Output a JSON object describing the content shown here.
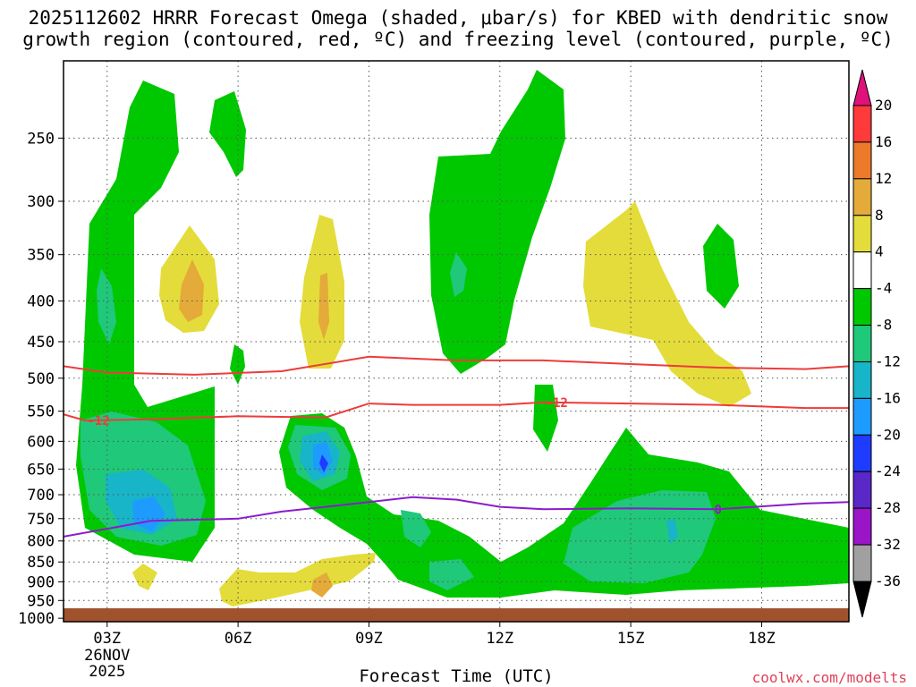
{
  "chart_data": {
    "type": "time-height contour",
    "title_line1": "2025112602 HRRR Forecast Omega (shaded, μbar/s) for KBED with dendritic snow",
    "title_line2": "growth region (contoured, red, ºC) and freezing level (contoured, purple, ºC)",
    "xlabel": "Forecast Time (UTC)",
    "credit": "coolwx.com/modelts",
    "x_ticks": [
      "03Z",
      "06Z",
      "09Z",
      "12Z",
      "15Z",
      "18Z"
    ],
    "x_date_line1": "26NOV",
    "x_date_line2": "2025",
    "xlim": [
      2,
      20
    ],
    "y_ticks": [
      250,
      300,
      350,
      400,
      450,
      500,
      550,
      600,
      650,
      700,
      750,
      800,
      850,
      900,
      950,
      1000
    ],
    "ylim_hpa": [
      1010,
      200
    ],
    "colorbar": {
      "labels": [
        "20",
        "16",
        "12",
        "8",
        "4",
        "-4",
        "-8",
        "-12",
        "-16",
        "-20",
        "-24",
        "-28",
        "-32",
        "-36"
      ],
      "colors": [
        "#ff3a3a",
        "#ec7a2a",
        "#e4aa3a",
        "#e4dc3a",
        "#ffffff",
        "#00c800",
        "#20c87a",
        "#18b4c8",
        "#1e9bff",
        "#1e3cff",
        "#5a28c8",
        "#9a14c8",
        "#a0a0a0"
      ],
      "top_arrow_color": "#e0117a",
      "bottom_arrow_color": "#000000"
    },
    "contours": {
      "dgz_minus12": {
        "label": "-12",
        "color": "#ee3b3b",
        "points": [
          [
            2,
            555
          ],
          [
            2.5,
            565
          ],
          [
            4,
            563
          ],
          [
            6,
            558
          ],
          [
            8,
            560
          ],
          [
            9,
            538
          ],
          [
            10,
            540
          ],
          [
            12,
            540
          ],
          [
            13,
            536
          ],
          [
            15,
            538
          ],
          [
            17,
            540
          ],
          [
            19,
            545
          ],
          [
            20,
            545
          ]
        ]
      },
      "dgz_upper": {
        "label": "",
        "color": "#ee3b3b",
        "points": [
          [
            2,
            483
          ],
          [
            3,
            492
          ],
          [
            5,
            495
          ],
          [
            7,
            490
          ],
          [
            9,
            470
          ],
          [
            11,
            475
          ],
          [
            13,
            475
          ],
          [
            15,
            480
          ],
          [
            17,
            485
          ],
          [
            19,
            487
          ],
          [
            20,
            483
          ]
        ]
      },
      "freezing_level": {
        "label": "0",
        "color": "#8a1ccc",
        "points": [
          [
            2,
            790
          ],
          [
            4,
            755
          ],
          [
            6,
            750
          ],
          [
            7,
            735
          ],
          [
            8,
            725
          ],
          [
            9,
            715
          ],
          [
            10,
            705
          ],
          [
            11,
            710
          ],
          [
            12,
            725
          ],
          [
            13,
            730
          ],
          [
            15,
            728
          ],
          [
            17,
            730
          ],
          [
            19,
            718
          ],
          [
            20,
            715
          ]
        ]
      }
    }
  }
}
